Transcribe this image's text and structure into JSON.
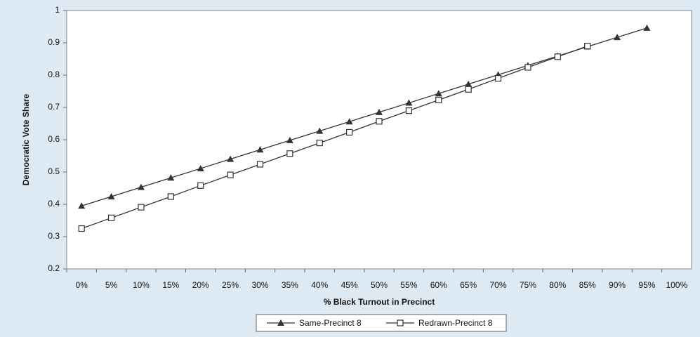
{
  "chart_data": {
    "type": "line",
    "x_label": "% Black Turnout in Precinct",
    "y_label": "Democratic Vote Share",
    "categories": [
      "0%",
      "5%",
      "10%",
      "15%",
      "20%",
      "25%",
      "30%",
      "35%",
      "40%",
      "45%",
      "50%",
      "55%",
      "60%",
      "65%",
      "70%",
      "75%",
      "80%",
      "85%",
      "90%",
      "95%",
      "100%"
    ],
    "series": [
      {
        "name": "Same-Precinct 8",
        "color": "#333333",
        "marker": "triangle",
        "values": [
          0.395,
          0.424,
          0.453,
          0.482,
          0.511,
          0.54,
          0.569,
          0.598,
          0.627,
          0.656,
          0.685,
          0.714,
          0.743,
          0.772,
          0.801,
          0.83,
          0.859,
          0.888,
          0.917,
          0.946,
          null
        ]
      },
      {
        "name": "Redrawn-Precinct 8",
        "color": "#333333",
        "marker": "square",
        "values": [
          0.325,
          0.358,
          0.391,
          0.424,
          0.458,
          0.491,
          0.524,
          0.557,
          0.59,
          0.623,
          0.657,
          0.69,
          0.723,
          0.756,
          0.79,
          0.824,
          0.857,
          0.89,
          null,
          null,
          null
        ]
      }
    ],
    "ylim": [
      0.2,
      1
    ],
    "yticks": [
      0.2,
      0.3,
      0.4,
      0.5,
      0.6,
      0.7,
      0.8,
      0.9,
      1
    ],
    "grid": false,
    "legend": "bottom"
  }
}
